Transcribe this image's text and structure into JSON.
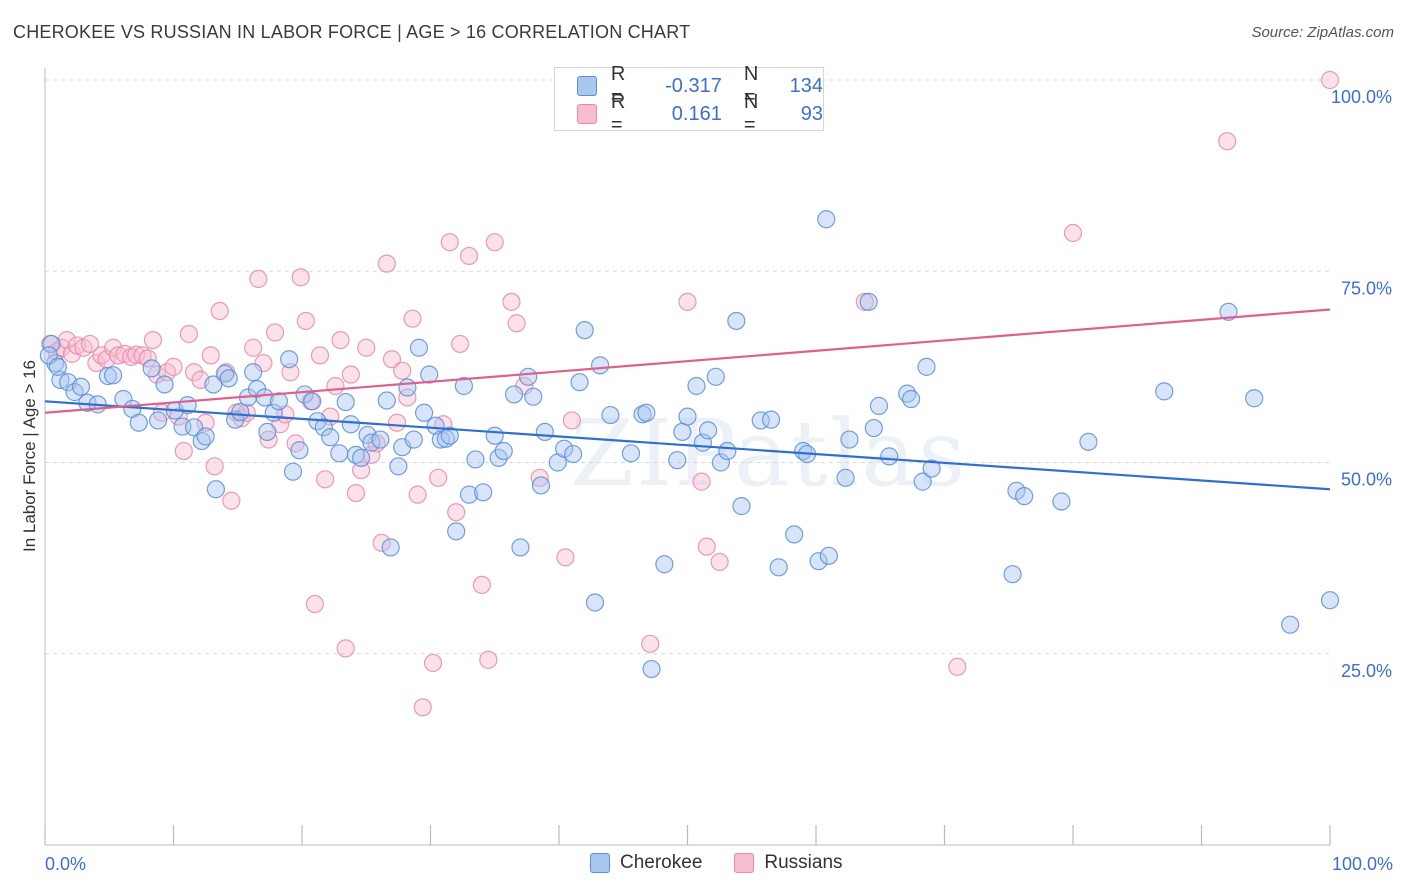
{
  "title": "CHEROKEE VS RUSSIAN IN LABOR FORCE | AGE > 16 CORRELATION CHART",
  "source": "Source: ZipAtlas.com",
  "watermark": "ZIPatlas",
  "colors": {
    "cherokee_fill": "#a9c6ef",
    "cherokee_stroke": "#5b8fd6",
    "cherokee_line": "#2e6fd0",
    "russians_fill": "#f6bcd0",
    "russians_stroke": "#e88aa9",
    "russians_line": "#e0608c",
    "tick_label": "#3b6fd0",
    "grid": "#d9d9d9"
  },
  "legend": {
    "rows": [
      {
        "r_label": "R =",
        "r_value": "-0.317",
        "n_label": "N =",
        "n_value": "134"
      },
      {
        "r_label": "R =",
        "r_value": "0.161",
        "n_label": "N =",
        "n_value": "93"
      }
    ]
  },
  "bottom_legend": {
    "series1": "Cherokee",
    "series2": "Russians"
  },
  "chart_data": {
    "type": "scatter",
    "title": "CHEROKEE VS RUSSIAN IN LABOR FORCE | AGE > 16 CORRELATION CHART",
    "xlabel": "",
    "ylabel": "In Labor Force | Age > 16",
    "xlim": [
      0,
      100
    ],
    "ylim": [
      0,
      100
    ],
    "x_tick_labels": [
      "0.0%",
      "100.0%"
    ],
    "y_tick_labels": [
      "25.0%",
      "50.0%",
      "75.0%",
      "100.0%"
    ],
    "y_ticks": [
      25,
      50,
      75,
      100
    ],
    "grid": true,
    "legend_position": "top-center",
    "series": [
      {
        "name": "Cherokee",
        "r": -0.317,
        "n": 134,
        "trend": {
          "x": [
            0,
            100
          ],
          "y": [
            58.0,
            46.5
          ]
        },
        "points": [
          [
            0.5,
            65.5
          ],
          [
            0.8,
            63
          ],
          [
            1.2,
            60.8
          ],
          [
            1.8,
            60.5
          ],
          [
            2.3,
            59.2
          ],
          [
            2.8,
            59.9
          ],
          [
            3.3,
            57.8
          ],
          [
            4.1,
            57.6
          ],
          [
            4.9,
            61.3
          ],
          [
            5.3,
            61.4
          ],
          [
            6.1,
            58.3
          ],
          [
            6.8,
            57.0
          ],
          [
            7.3,
            55.2
          ],
          [
            8.3,
            62.3
          ],
          [
            8.8,
            55.5
          ],
          [
            9.3,
            60.2
          ],
          [
            10.1,
            56.8
          ],
          [
            10.7,
            54.7
          ],
          [
            11.1,
            57.5
          ],
          [
            11.6,
            54.6
          ],
          [
            12.2,
            52.8
          ],
          [
            12.5,
            53.4
          ],
          [
            13.1,
            60.2
          ],
          [
            13.3,
            46.5
          ],
          [
            14.0,
            61.6
          ],
          [
            14.3,
            61.0
          ],
          [
            14.8,
            55.6
          ],
          [
            15.2,
            56.6
          ],
          [
            15.8,
            58.5
          ],
          [
            16.2,
            61.8
          ],
          [
            16.5,
            59.6
          ],
          [
            17.1,
            58.5
          ],
          [
            17.3,
            54.0
          ],
          [
            17.8,
            56.5
          ],
          [
            18.2,
            58.0
          ],
          [
            19.0,
            63.5
          ],
          [
            19.3,
            48.8
          ],
          [
            19.8,
            51.6
          ],
          [
            20.2,
            58.9
          ],
          [
            20.8,
            58.0
          ],
          [
            21.2,
            55.4
          ],
          [
            21.7,
            54.6
          ],
          [
            22.2,
            53.3
          ],
          [
            22.9,
            51.2
          ],
          [
            23.4,
            57.9
          ],
          [
            23.8,
            55.0
          ],
          [
            24.2,
            51.0
          ],
          [
            24.6,
            50.6
          ],
          [
            25.1,
            53.6
          ],
          [
            25.4,
            52.6
          ],
          [
            26.1,
            53.0
          ],
          [
            26.6,
            58.1
          ],
          [
            26.9,
            38.9
          ],
          [
            27.5,
            49.5
          ],
          [
            27.8,
            52.0
          ],
          [
            28.2,
            59.8
          ],
          [
            28.7,
            53.0
          ],
          [
            29.1,
            65.0
          ],
          [
            29.5,
            56.5
          ],
          [
            29.9,
            61.5
          ],
          [
            30.4,
            54.8
          ],
          [
            30.8,
            53.0
          ],
          [
            31.2,
            53.1
          ],
          [
            31.5,
            53.5
          ],
          [
            32.0,
            41.0
          ],
          [
            32.6,
            60.0
          ],
          [
            33.0,
            45.8
          ],
          [
            33.5,
            50.4
          ],
          [
            34.1,
            46.1
          ],
          [
            35.0,
            53.5
          ],
          [
            35.3,
            50.6
          ],
          [
            35.7,
            51.5
          ],
          [
            36.5,
            58.9
          ],
          [
            37.0,
            38.9
          ],
          [
            37.6,
            61.2
          ],
          [
            38.0,
            58.6
          ],
          [
            38.6,
            47.0
          ],
          [
            38.9,
            54.0
          ],
          [
            39.9,
            50.0
          ],
          [
            40.4,
            51.8
          ],
          [
            41.1,
            51.1
          ],
          [
            41.6,
            60.5
          ],
          [
            42.0,
            67.3
          ],
          [
            42.8,
            31.7
          ],
          [
            43.2,
            62.7
          ],
          [
            44.0,
            56.2
          ],
          [
            45.6,
            51.2
          ],
          [
            46.5,
            56.3
          ],
          [
            46.8,
            56.5
          ],
          [
            47.2,
            23.0
          ],
          [
            48.2,
            36.7
          ],
          [
            49.2,
            50.3
          ],
          [
            49.6,
            54.0
          ],
          [
            50.0,
            56.0
          ],
          [
            50.7,
            60.0
          ],
          [
            51.2,
            52.6
          ],
          [
            51.6,
            54.2
          ],
          [
            52.2,
            61.2
          ],
          [
            52.6,
            50.0
          ],
          [
            53.1,
            51.5
          ],
          [
            53.8,
            68.5
          ],
          [
            54.2,
            44.3
          ],
          [
            55.7,
            55.5
          ],
          [
            56.5,
            55.6
          ],
          [
            57.1,
            36.3
          ],
          [
            58.3,
            40.6
          ],
          [
            59.0,
            51.5
          ],
          [
            59.3,
            51.1
          ],
          [
            60.2,
            37.1
          ],
          [
            60.8,
            81.8
          ],
          [
            61.0,
            37.8
          ],
          [
            62.3,
            48.0
          ],
          [
            62.6,
            53.0
          ],
          [
            64.1,
            71.0
          ],
          [
            64.5,
            54.5
          ],
          [
            64.9,
            57.4
          ],
          [
            65.7,
            50.8
          ],
          [
            67.1,
            59.0
          ],
          [
            67.4,
            58.3
          ],
          [
            68.3,
            47.5
          ],
          [
            68.6,
            62.5
          ],
          [
            69.0,
            49.2
          ],
          [
            75.3,
            35.4
          ],
          [
            75.6,
            46.3
          ],
          [
            76.2,
            45.6
          ],
          [
            79.1,
            44.9
          ],
          [
            81.2,
            52.7
          ],
          [
            87.1,
            59.3
          ],
          [
            92.1,
            69.7
          ],
          [
            94.1,
            58.4
          ],
          [
            96.9,
            28.8
          ],
          [
            100.0,
            32.0
          ],
          [
            0.3,
            64.0
          ],
          [
            1.0,
            62.5
          ]
        ]
      },
      {
        "name": "Russians",
        "r": 0.161,
        "n": 93,
        "trend": {
          "x": [
            0,
            100
          ],
          "y": [
            56.5,
            70.0
          ]
        },
        "points": [
          [
            0.4,
            65.5
          ],
          [
            0.9,
            64.5
          ],
          [
            1.3,
            65.0
          ],
          [
            1.7,
            66.0
          ],
          [
            2.1,
            64.2
          ],
          [
            2.5,
            65.3
          ],
          [
            3.0,
            65.0
          ],
          [
            3.5,
            65.5
          ],
          [
            4.0,
            63.0
          ],
          [
            4.4,
            64.0
          ],
          [
            4.8,
            63.5
          ],
          [
            5.3,
            65.0
          ],
          [
            5.7,
            64.0
          ],
          [
            6.2,
            64.2
          ],
          [
            6.7,
            63.8
          ],
          [
            7.1,
            64.1
          ],
          [
            7.6,
            64.0
          ],
          [
            8.0,
            63.6
          ],
          [
            8.4,
            66.0
          ],
          [
            8.7,
            61.5
          ],
          [
            9.1,
            56.5
          ],
          [
            9.5,
            61.8
          ],
          [
            10.0,
            62.5
          ],
          [
            10.4,
            56.0
          ],
          [
            10.8,
            51.5
          ],
          [
            11.2,
            66.8
          ],
          [
            11.6,
            61.8
          ],
          [
            12.1,
            60.8
          ],
          [
            12.5,
            55.2
          ],
          [
            12.9,
            64.0
          ],
          [
            13.2,
            49.5
          ],
          [
            13.6,
            69.8
          ],
          [
            14.1,
            61.8
          ],
          [
            14.5,
            45.0
          ],
          [
            14.9,
            56.5
          ],
          [
            15.3,
            55.8
          ],
          [
            15.7,
            56.5
          ],
          [
            16.2,
            65.0
          ],
          [
            16.6,
            74.0
          ],
          [
            17.0,
            63.0
          ],
          [
            17.4,
            53.0
          ],
          [
            17.9,
            67.0
          ],
          [
            18.3,
            55.0
          ],
          [
            18.7,
            56.3
          ],
          [
            19.1,
            61.8
          ],
          [
            19.5,
            52.5
          ],
          [
            19.9,
            74.2
          ],
          [
            20.3,
            68.5
          ],
          [
            20.7,
            58.0
          ],
          [
            21.0,
            31.5
          ],
          [
            21.4,
            64.0
          ],
          [
            21.8,
            47.8
          ],
          [
            22.2,
            56.0
          ],
          [
            22.6,
            60.0
          ],
          [
            23.0,
            66.0
          ],
          [
            23.4,
            25.7
          ],
          [
            23.8,
            61.5
          ],
          [
            24.2,
            46.0
          ],
          [
            24.6,
            49.0
          ],
          [
            25.0,
            65.0
          ],
          [
            25.4,
            51.0
          ],
          [
            25.8,
            52.5
          ],
          [
            26.2,
            39.5
          ],
          [
            26.6,
            76.0
          ],
          [
            27.0,
            63.5
          ],
          [
            27.4,
            55.2
          ],
          [
            27.8,
            62.0
          ],
          [
            28.2,
            58.5
          ],
          [
            28.6,
            68.8
          ],
          [
            29.0,
            45.8
          ],
          [
            29.4,
            18.0
          ],
          [
            30.2,
            23.8
          ],
          [
            30.6,
            48.0
          ],
          [
            31.0,
            55.0
          ],
          [
            31.5,
            78.8
          ],
          [
            32.0,
            43.5
          ],
          [
            32.3,
            65.5
          ],
          [
            33.0,
            77.0
          ],
          [
            34.0,
            34.0
          ],
          [
            34.5,
            24.2
          ],
          [
            35.0,
            78.8
          ],
          [
            36.3,
            71.0
          ],
          [
            36.7,
            68.2
          ],
          [
            37.3,
            60.0
          ],
          [
            38.5,
            48.0
          ],
          [
            40.5,
            37.6
          ],
          [
            41.0,
            55.5
          ],
          [
            47.1,
            26.3
          ],
          [
            50.0,
            71.0
          ],
          [
            51.1,
            47.5
          ],
          [
            51.5,
            39.0
          ],
          [
            52.5,
            37.0
          ],
          [
            63.8,
            71.0
          ]
        ]
      }
    ],
    "top_outliers": {
      "cherokee": [],
      "russians": [
        [
          57.1,
          100
        ],
        [
          58.8,
          100
        ],
        [
          100,
          100
        ],
        [
          92.0,
          92.0
        ],
        [
          80.0,
          80.0
        ],
        [
          71.0,
          23.3
        ]
      ]
    }
  }
}
